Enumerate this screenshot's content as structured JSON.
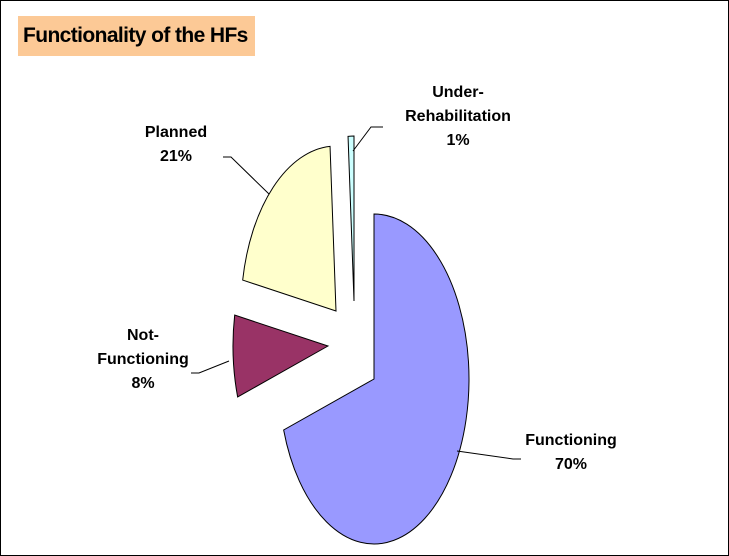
{
  "chart_data": {
    "type": "pie",
    "title": "Functionality of the HFs",
    "categories": [
      "Functioning",
      "Not-Functioning",
      "Planned",
      "Under-Rehabilitation"
    ],
    "values": [
      70,
      8,
      21,
      1
    ],
    "value_labels": [
      "70%",
      "8%",
      "21%",
      "1%"
    ],
    "colors": [
      "#9999ff",
      "#993366",
      "#ffffcc",
      "#ccffff"
    ]
  }
}
